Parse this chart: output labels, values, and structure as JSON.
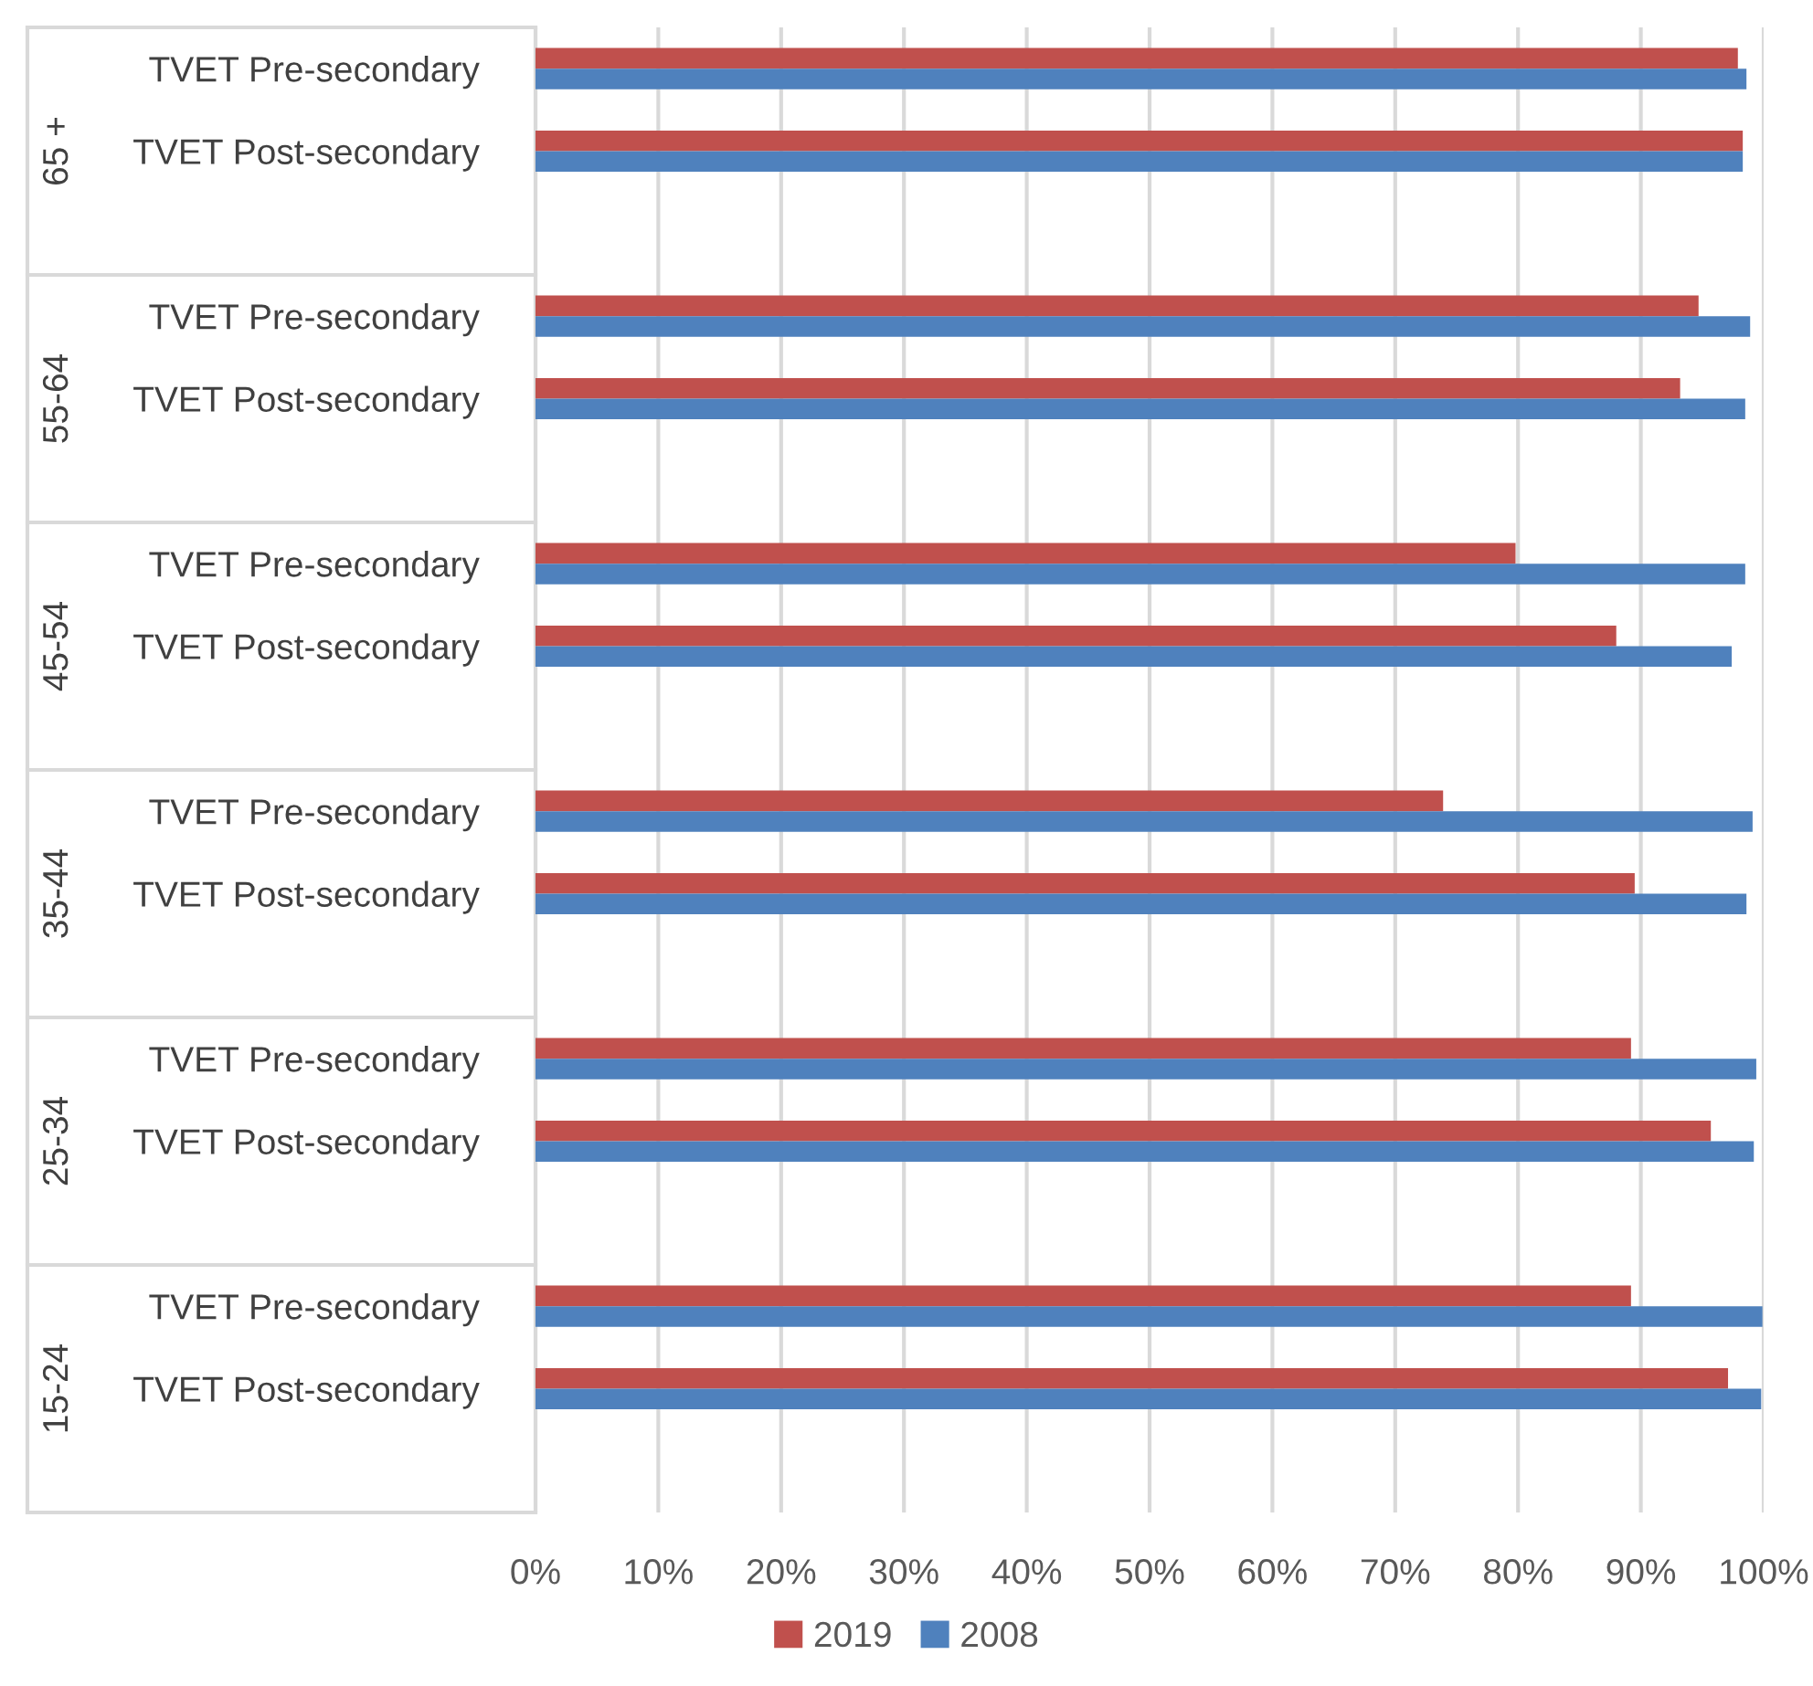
{
  "chart_data": {
    "type": "bar",
    "orientation": "horizontal",
    "categories": [
      "TVET Pre-secondary",
      "TVET Post-secondary",
      null,
      "TVET Pre-secondary",
      "TVET Post-secondary",
      null,
      "TVET Pre-secondary",
      "TVET Post-secondary",
      null,
      "TVET Pre-secondary",
      "TVET Post-secondary",
      null,
      "TVET Pre-secondary",
      "TVET Post-secondary",
      null,
      "TVET Pre-secondary",
      "TVET Post-secondary",
      null
    ],
    "annotations": [
      "65 +",
      "55-64",
      "45-54",
      "35-44",
      "25-34",
      "15-24"
    ],
    "series": [
      {
        "name": "2019",
        "color": "#c0504d",
        "values": [
          97.9,
          98.3,
          null,
          94.7,
          93.2,
          null,
          79.8,
          88.0,
          null,
          73.9,
          89.5,
          null,
          89.2,
          95.7,
          null,
          89.2,
          97.1,
          null
        ]
      },
      {
        "name": "2008",
        "color": "#4f81bd",
        "values": [
          98.6,
          98.3,
          null,
          98.9,
          98.5,
          null,
          98.5,
          97.4,
          null,
          99.1,
          98.6,
          null,
          99.4,
          99.2,
          null,
          99.9,
          99.8,
          null
        ]
      }
    ],
    "xlim": [
      0,
      100
    ],
    "xticks": [
      {
        "value": 0,
        "label": "0%"
      },
      {
        "value": 10,
        "label": "10%"
      },
      {
        "value": 20,
        "label": "20%"
      },
      {
        "value": 30,
        "label": "30%"
      },
      {
        "value": 40,
        "label": "40%"
      },
      {
        "value": 50,
        "label": "50%"
      },
      {
        "value": 60,
        "label": "60%"
      },
      {
        "value": 70,
        "label": "70%"
      },
      {
        "value": 80,
        "label": "80%"
      },
      {
        "value": 90,
        "label": "90%"
      },
      {
        "value": 100,
        "label": "100%"
      }
    ],
    "grid": "x",
    "legend": "bottom"
  }
}
